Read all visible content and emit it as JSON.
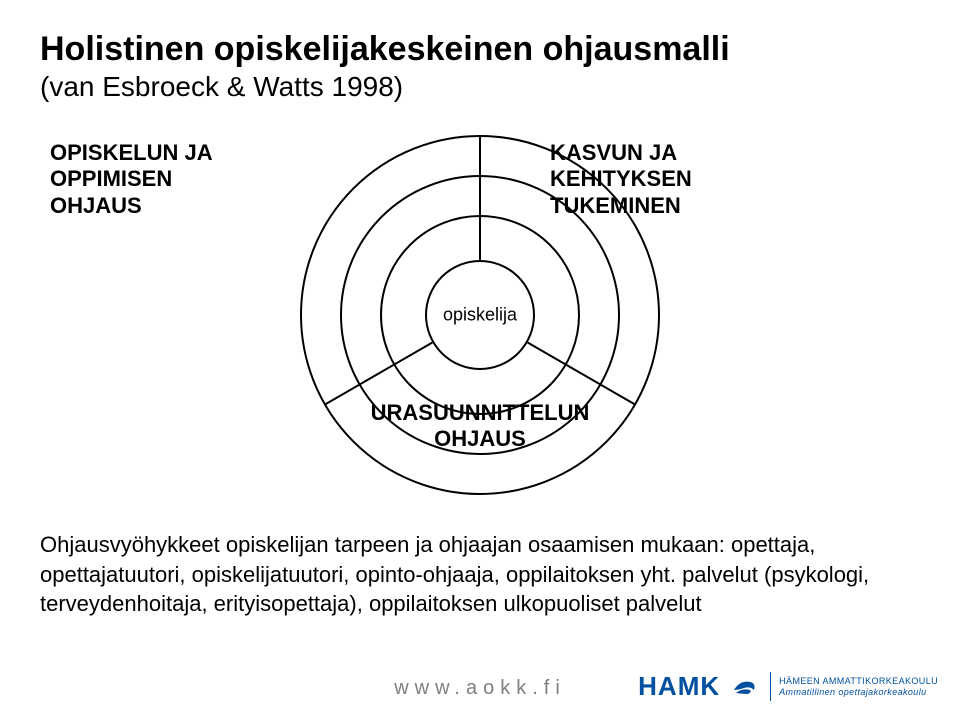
{
  "title": "Holistinen opiskelijakeskeinen ohjausmalli",
  "subtitle": "(van Esbroeck & Watts 1998)",
  "diagram": {
    "type": "concentric-circles-radial",
    "circle_radii": [
      55,
      100,
      140,
      180
    ],
    "circle_stroke": "#000000",
    "circle_stroke_width": 2,
    "spokes": [
      {
        "angle_deg": 180,
        "inner_r": 55,
        "outer_r": 180
      },
      {
        "angle_deg": 300,
        "inner_r": 55,
        "outer_r": 180
      },
      {
        "angle_deg": 60,
        "inner_r": 55,
        "outer_r": 180
      }
    ],
    "center_label": "opiskelija",
    "sector_labels": {
      "left": "OPISKELUN JA\nOPPIMISEN\nOHJAUS",
      "right": "KASVUN JA\nKEHITYKSEN\nTUKEMINEN",
      "bottom": "URASUUNNITTELUN\nOHJAUS"
    },
    "label_fontsize": 22,
    "label_fontweight": "bold",
    "center_fontsize": 18,
    "background": "#ffffff"
  },
  "body_text": "Ohjausvyöhykkeet opiskelijan tarpeen ja ohjaajan osaamisen mukaan: opettaja, opettajatuutori, opiskelijatuutori, opinto-ohjaaja, oppilaitoksen yht. palvelut (psykologi, terveydenhoitaja, erityisopettaja), oppilaitoksen ulkopuoliset palvelut",
  "footer": {
    "url": "www.aokk.fi",
    "url_color": "#7f7f7f",
    "logo_text": "HAMK",
    "logo_sub_top": "HÄMEEN AMMATTIKORKEAKOULU",
    "logo_sub_bottom": "Ammatillinen opettajakorkeakoulu",
    "logo_color": "#0050a0"
  }
}
